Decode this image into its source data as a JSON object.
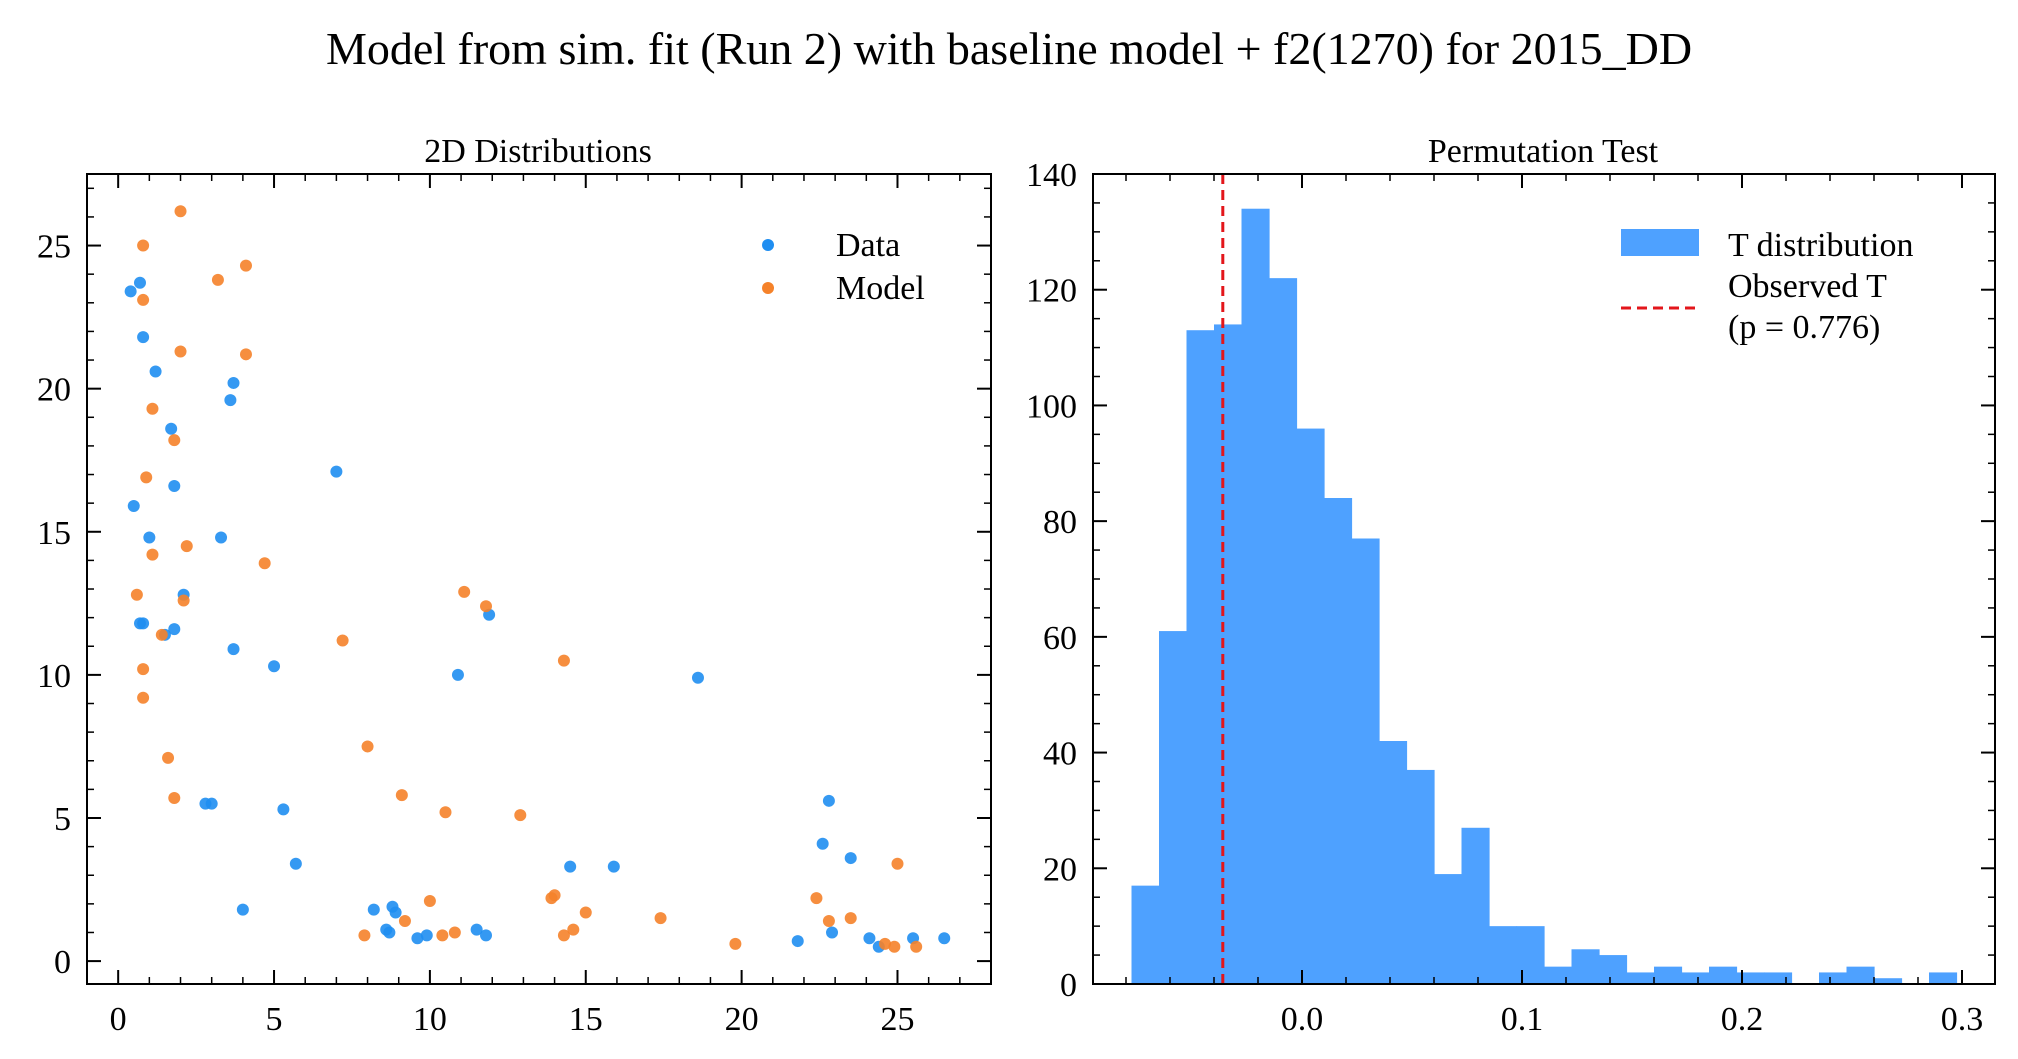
{
  "figure": {
    "title": "Model from sim. fit (Run 2) with baseline model + f2(1270) for 2015_DD"
  },
  "colors": {
    "data": "#1f8ef1",
    "model": "#f5822a",
    "hist": "#4ea1ff",
    "observed": "#e3161b"
  },
  "chart_data": [
    {
      "type": "scatter",
      "title": "2D Distributions",
      "xlabel": "",
      "ylabel": "",
      "xlim": [
        -1,
        28
      ],
      "ylim": [
        -0.8,
        27.5
      ],
      "xticks": [
        "0",
        "5",
        "10",
        "15",
        "20",
        "25"
      ],
      "yticks": [
        "0",
        "5",
        "10",
        "15",
        "20",
        "25"
      ],
      "grid": false,
      "legend_position": "top-right",
      "series": [
        {
          "name": "Data",
          "points": [
            [
              0.4,
              23.4
            ],
            [
              0.7,
              23.7
            ],
            [
              0.8,
              21.8
            ],
            [
              1.2,
              20.6
            ],
            [
              1.7,
              18.6
            ],
            [
              1.8,
              16.6
            ],
            [
              0.5,
              15.9
            ],
            [
              1.0,
              14.8
            ],
            [
              2.1,
              12.8
            ],
            [
              0.7,
              11.8
            ],
            [
              0.8,
              11.8
            ],
            [
              1.5,
              11.4
            ],
            [
              1.8,
              11.6
            ],
            [
              3.7,
              20.2
            ],
            [
              3.6,
              19.6
            ],
            [
              3.3,
              14.8
            ],
            [
              3.7,
              10.9
            ],
            [
              7.0,
              17.1
            ],
            [
              5.0,
              10.3
            ],
            [
              10.9,
              10.0
            ],
            [
              11.9,
              12.1
            ],
            [
              18.6,
              9.9
            ],
            [
              2.8,
              5.5
            ],
            [
              3.0,
              5.5
            ],
            [
              5.3,
              5.3
            ],
            [
              5.7,
              3.4
            ],
            [
              4.0,
              1.8
            ],
            [
              8.2,
              1.8
            ],
            [
              8.8,
              1.9
            ],
            [
              8.9,
              1.7
            ],
            [
              8.6,
              1.1
            ],
            [
              8.7,
              1.0
            ],
            [
              9.6,
              0.8
            ],
            [
              9.9,
              0.9
            ],
            [
              11.5,
              1.1
            ],
            [
              11.8,
              0.9
            ],
            [
              14.5,
              3.3
            ],
            [
              15.9,
              3.3
            ],
            [
              21.8,
              0.7
            ],
            [
              22.6,
              4.1
            ],
            [
              22.8,
              5.6
            ],
            [
              22.9,
              1.0
            ],
            [
              23.5,
              3.6
            ],
            [
              24.1,
              0.8
            ],
            [
              24.4,
              0.5
            ],
            [
              25.5,
              0.8
            ],
            [
              26.5,
              0.8
            ]
          ]
        },
        {
          "name": "Model",
          "points": [
            [
              2.0,
              26.2
            ],
            [
              0.8,
              25.0
            ],
            [
              0.8,
              23.1
            ],
            [
              3.2,
              23.8
            ],
            [
              4.1,
              24.3
            ],
            [
              4.1,
              21.2
            ],
            [
              2.0,
              21.3
            ],
            [
              1.1,
              19.3
            ],
            [
              1.8,
              18.2
            ],
            [
              0.9,
              16.9
            ],
            [
              1.1,
              14.2
            ],
            [
              2.2,
              14.5
            ],
            [
              4.7,
              13.9
            ],
            [
              0.6,
              12.8
            ],
            [
              2.1,
              12.6
            ],
            [
              1.4,
              11.4
            ],
            [
              0.8,
              10.2
            ],
            [
              0.8,
              9.2
            ],
            [
              7.2,
              11.2
            ],
            [
              11.1,
              12.9
            ],
            [
              11.8,
              12.4
            ],
            [
              14.3,
              10.5
            ],
            [
              1.6,
              7.1
            ],
            [
              1.8,
              5.7
            ],
            [
              8.0,
              7.5
            ],
            [
              9.1,
              5.8
            ],
            [
              10.5,
              5.2
            ],
            [
              12.9,
              5.1
            ],
            [
              10.0,
              2.1
            ],
            [
              9.2,
              1.4
            ],
            [
              7.9,
              0.9
            ],
            [
              10.4,
              0.9
            ],
            [
              10.8,
              1.0
            ],
            [
              13.9,
              2.2
            ],
            [
              14.0,
              2.3
            ],
            [
              14.3,
              0.9
            ],
            [
              14.6,
              1.1
            ],
            [
              15.0,
              1.7
            ],
            [
              17.4,
              1.5
            ],
            [
              19.8,
              0.6
            ],
            [
              22.4,
              2.2
            ],
            [
              22.8,
              1.4
            ],
            [
              23.5,
              1.5
            ],
            [
              24.6,
              0.6
            ],
            [
              24.9,
              0.5
            ],
            [
              25.0,
              3.4
            ],
            [
              25.6,
              0.5
            ]
          ]
        }
      ]
    },
    {
      "type": "bar",
      "title": "Permutation Test",
      "xlabel": "",
      "ylabel": "",
      "xlim": [
        -0.095,
        0.315
      ],
      "ylim": [
        0,
        140
      ],
      "xticks": [
        "0.0",
        "0.1",
        "0.2",
        "0.3"
      ],
      "yticks": [
        "0",
        "20",
        "40",
        "60",
        "80",
        "100",
        "120",
        "140"
      ],
      "grid": false,
      "legend_position": "top-right",
      "series": [
        {
          "name": "T distribution",
          "bin_start": -0.0775,
          "bin_width": 0.0125,
          "counts": [
            17,
            61,
            113,
            114,
            134,
            122,
            96,
            84,
            77,
            42,
            37,
            19,
            27,
            10,
            10,
            3,
            6,
            5,
            2,
            3,
            2,
            3,
            2,
            2,
            0,
            2,
            3,
            1,
            0,
            2
          ]
        }
      ],
      "observed": {
        "name": "Observed T",
        "value": -0.036,
        "p_label": "(p = 0.776)"
      }
    }
  ]
}
